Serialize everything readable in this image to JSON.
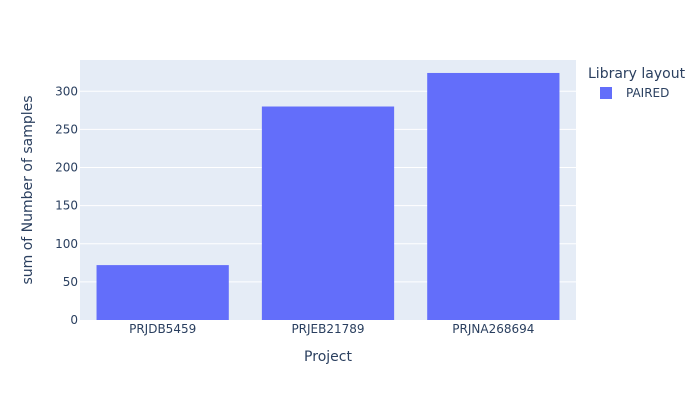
{
  "chart_data": {
    "type": "bar",
    "title": "",
    "xlabel": "Project",
    "ylabel": "sum of Number of samples",
    "categories": [
      "PRJDB5459",
      "PRJEB21789",
      "PRJNA268694"
    ],
    "series": [
      {
        "name": "PAIRED",
        "values": [
          72,
          280,
          324
        ]
      }
    ],
    "ylim": [
      0,
      341
    ],
    "yticks": [
      0,
      50,
      100,
      150,
      200,
      250,
      300
    ],
    "grid": true,
    "legend": {
      "title": "Library layout",
      "placement": "top-right"
    },
    "colors": {
      "bar": "#636efa",
      "plot_bg": "#e5ecf6",
      "grid": "#ffffff",
      "text": "#2a3f5f"
    }
  }
}
